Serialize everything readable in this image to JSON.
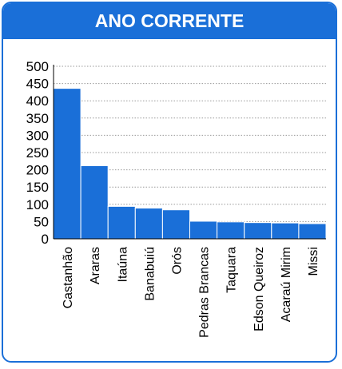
{
  "header": {
    "title": "ANO CORRENTE"
  },
  "colors": {
    "accent": "#1a6fd8",
    "bar": "#1a6fd8",
    "bar_edge": "#ffffff",
    "grid": "#9a9a9a",
    "text": "#000000"
  },
  "chart_data": {
    "type": "bar",
    "title": "ANO CORRENTE",
    "xlabel": "",
    "ylabel": "",
    "categories": [
      "Castanhão",
      "Araras",
      "Itaúna",
      "Banabuiú",
      "Orós",
      "Pedras Brancas",
      "Taquara",
      "Edson Queiroz",
      "Acaraú Mirim",
      "Missi"
    ],
    "values": [
      436,
      212,
      94,
      89,
      84,
      51,
      49,
      47,
      46,
      44
    ],
    "ylim": [
      0,
      500
    ],
    "yticks": [
      0,
      50,
      100,
      150,
      200,
      250,
      300,
      350,
      400,
      450,
      500
    ],
    "grid": "horizontal-dotted",
    "legend": "none"
  }
}
